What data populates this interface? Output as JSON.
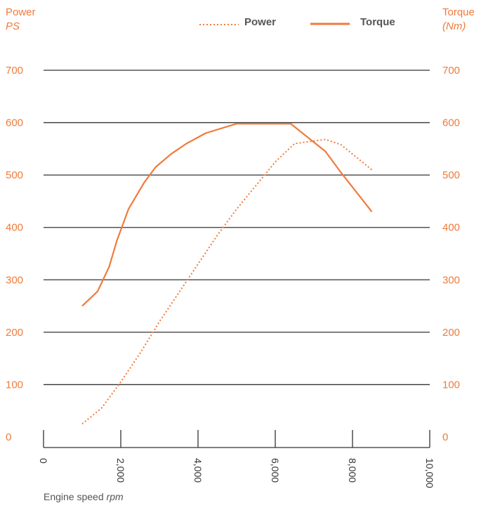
{
  "chart_data": {
    "type": "line",
    "left_axis": {
      "title": "Power",
      "unit": "PS"
    },
    "right_axis": {
      "title": "Torque",
      "unit": "(Nm)"
    },
    "xlabel": "Engine speed",
    "xunit": "rpm",
    "xlim": [
      0,
      10000
    ],
    "ylim": [
      0,
      700
    ],
    "x_ticks": [
      "0",
      "2,000",
      "4,000",
      "6,000",
      "8,000",
      "10,000"
    ],
    "y_ticks": [
      "0",
      "100",
      "200",
      "300",
      "400",
      "500",
      "600",
      "700"
    ],
    "grid": true,
    "legend_position": "top-center",
    "series": [
      {
        "name": "Power",
        "style": "dotted",
        "color": "#ef7b3b",
        "x": [
          1000,
          1500,
          2000,
          2500,
          3000,
          3500,
          4000,
          4500,
          5000,
          5500,
          6000,
          6500,
          7000,
          7300,
          7700,
          8500
        ],
        "y": [
          25,
          55,
          105,
          160,
          220,
          275,
          330,
          385,
          435,
          480,
          525,
          560,
          565,
          568,
          558,
          510
        ]
      },
      {
        "name": "Torque",
        "style": "solid",
        "color": "#ef7b3b",
        "x": [
          1000,
          1400,
          1700,
          1900,
          2200,
          2600,
          2900,
          3300,
          3700,
          4200,
          5000,
          5800,
          6400,
          7300,
          7700,
          8500
        ],
        "y": [
          250,
          278,
          325,
          375,
          435,
          485,
          515,
          540,
          560,
          580,
          598,
          598,
          598,
          545,
          505,
          430
        ]
      }
    ]
  }
}
